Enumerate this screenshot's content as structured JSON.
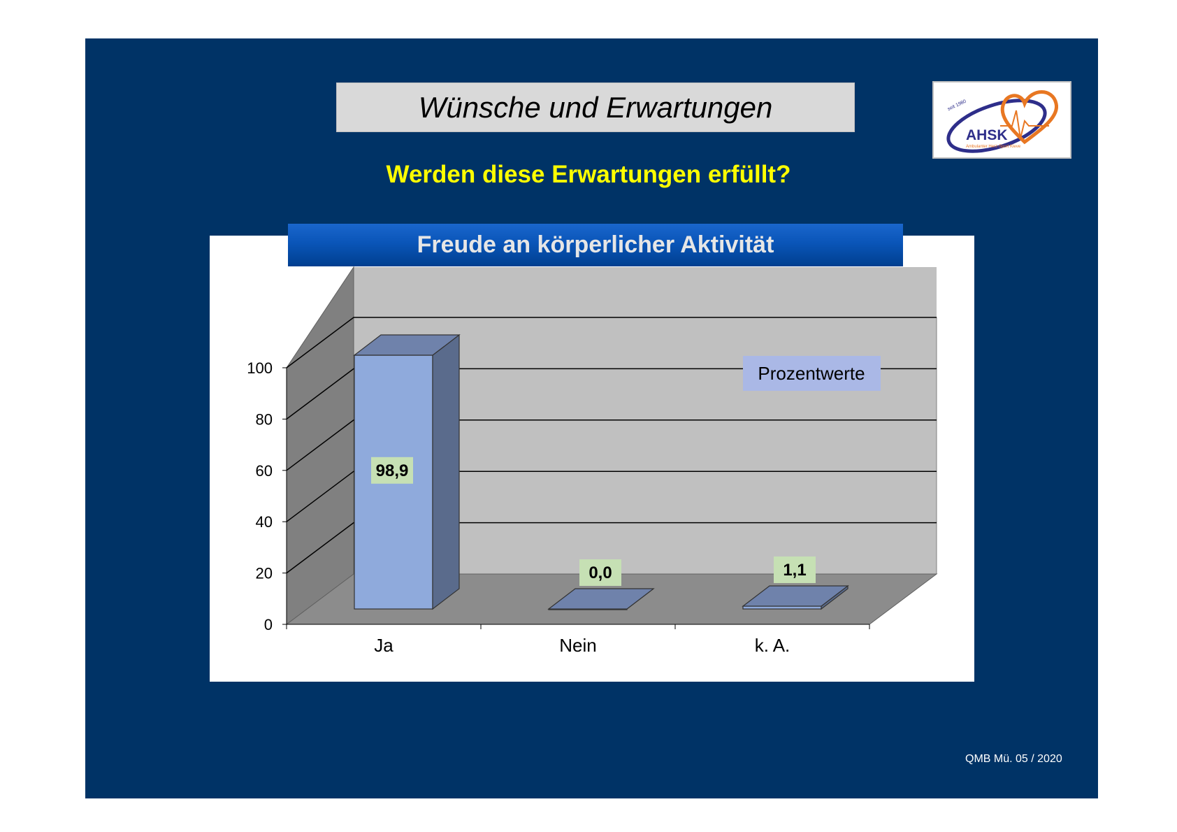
{
  "slide": {
    "title": "Wünsche und Erwartungen",
    "subtitle": "Werden diese Erwartungen erfüllt?",
    "footer": "QMB Mü. 05 / 2020"
  },
  "logo": {
    "text": "AHSK",
    "tagline": "Ambulanter Herz-Sport Kleve",
    "since": "seit 1980"
  },
  "colors": {
    "background": "#003366",
    "subtitle": "#ffff00",
    "bar": "#8faadc",
    "data_label_bg": "#c6e0b4",
    "legend_box": "#aab8e6"
  },
  "chart_data": {
    "type": "bar",
    "title": "Freude an körperlicher Aktivität",
    "categories": [
      "Ja",
      "Nein",
      "k. A."
    ],
    "values": [
      98.9,
      0.0,
      1.1
    ],
    "data_labels": [
      "98,9",
      "0,0",
      "1,1"
    ],
    "annotation": "Prozentwerte",
    "ylim": [
      0,
      100
    ],
    "yticks": [
      0,
      20,
      40,
      60,
      80,
      100
    ],
    "grid": true,
    "style": "3d"
  }
}
